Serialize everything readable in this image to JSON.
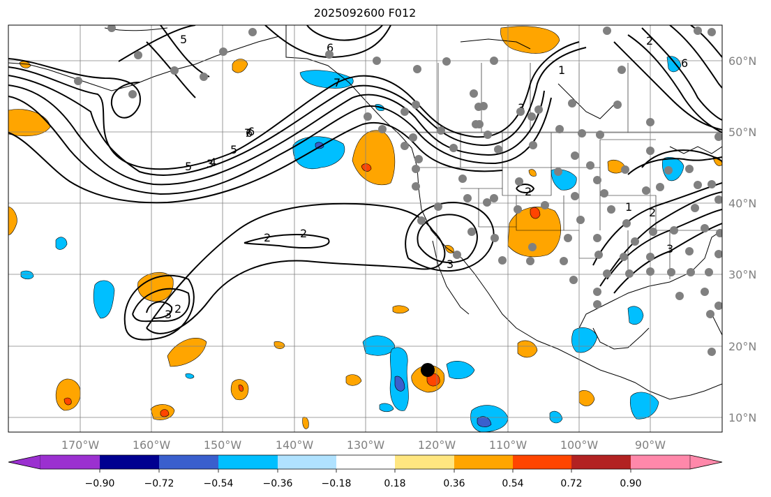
{
  "title": "2025092600 F012",
  "map": {
    "lon_ticks": [
      "170°W",
      "160°W",
      "150°W",
      "140°W",
      "130°W",
      "120°W",
      "110°W",
      "100°W",
      "90°W"
    ],
    "lat_ticks": [
      "60°N",
      "50°N",
      "40°N",
      "30°N",
      "20°N",
      "10°N"
    ],
    "contour_labels": [
      "6",
      "7",
      "6",
      "5",
      "4",
      "3",
      "5",
      "6",
      "7",
      "1",
      "2",
      "3",
      "2",
      "1",
      "2",
      "3",
      "2",
      "2",
      "3",
      "3",
      "2",
      "6",
      "5"
    ],
    "storm_marker": "tropical-cyclone-center"
  },
  "colorbar": {
    "tick_labels": [
      "−0.90",
      "−0.72",
      "−0.54",
      "−0.36",
      "−0.18",
      "0.18",
      "0.36",
      "0.54",
      "0.72",
      "0.90"
    ],
    "colors": [
      "#9b30d0",
      "#000090",
      "#3a5fcd",
      "#00bfff",
      "#b0e2ff",
      "#ffffff",
      "#ffe680",
      "#ffa500",
      "#ff4500",
      "#b22222",
      "#ff88aa"
    ]
  }
}
